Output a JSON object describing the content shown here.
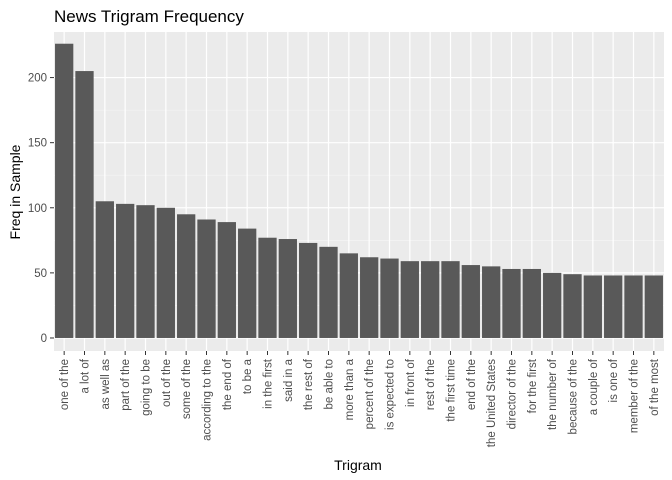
{
  "chart_data": {
    "type": "bar",
    "title": "News Trigram Frequency",
    "xlabel": "Trigram",
    "ylabel": "Freq in Sample",
    "ylim": [
      -10,
      235
    ],
    "yticks": [
      0,
      50,
      100,
      150,
      200
    ],
    "grid": true,
    "bar_color": "#595959",
    "panel_color": "#ebebeb",
    "categories": [
      "one of the",
      "a lot of",
      "as well as",
      "part of the",
      "going to be",
      "out of the",
      "some of the",
      "according to the",
      "the end of",
      "to be a",
      "in the first",
      "said in a",
      "the rest of",
      "be able to",
      "more than a",
      "percent of the",
      "is expected to",
      "in front of",
      "rest of the",
      "the first time",
      "end of the",
      "the United States",
      "director of the",
      "for the first",
      "the number of",
      "because of the",
      "a couple of",
      "is one of",
      "member of the",
      "of the most"
    ],
    "values": [
      226,
      205,
      105,
      103,
      102,
      100,
      95,
      91,
      89,
      84,
      77,
      76,
      73,
      70,
      65,
      62,
      61,
      59,
      59,
      59,
      56,
      55,
      53,
      53,
      50,
      49,
      48,
      48,
      48,
      48
    ]
  }
}
